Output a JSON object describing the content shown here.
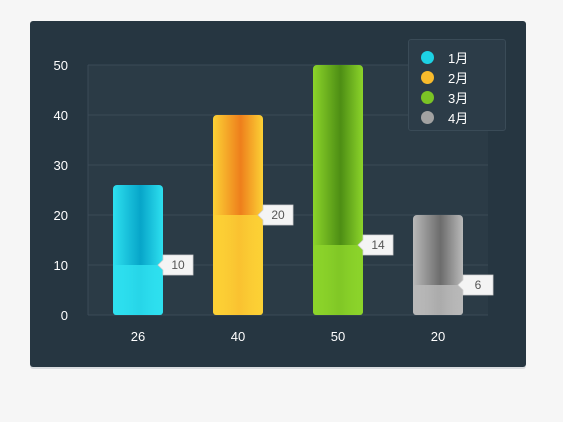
{
  "chart_data": {
    "type": "bar",
    "categories": [
      "26",
      "40",
      "50",
      "20"
    ],
    "series": [
      {
        "values": [
          26,
          40,
          50,
          20
        ]
      },
      {
        "values": [
          10,
          20,
          14,
          6
        ]
      }
    ],
    "bar_colors": [
      {
        "light": "#2ee0ef",
        "dark": "#07a5c9"
      },
      {
        "light": "#fcd135",
        "dark": "#ee7f1c"
      },
      {
        "light": "#8cd42a",
        "dark": "#4d8e14"
      },
      {
        "light": "#b9b9b9",
        "dark": "#6c6c6c"
      }
    ],
    "y_ticks": [
      0,
      10,
      20,
      30,
      40,
      50
    ],
    "ylim": [
      0,
      50
    ],
    "grid": true,
    "legend_position": "top-right",
    "legend": [
      {
        "label": "1月",
        "color": "#1dd2e4"
      },
      {
        "label": "2月",
        "color": "#f8bb2c"
      },
      {
        "label": "3月",
        "color": "#7bc425"
      },
      {
        "label": "4月",
        "color": "#a2a2a2"
      }
    ]
  }
}
